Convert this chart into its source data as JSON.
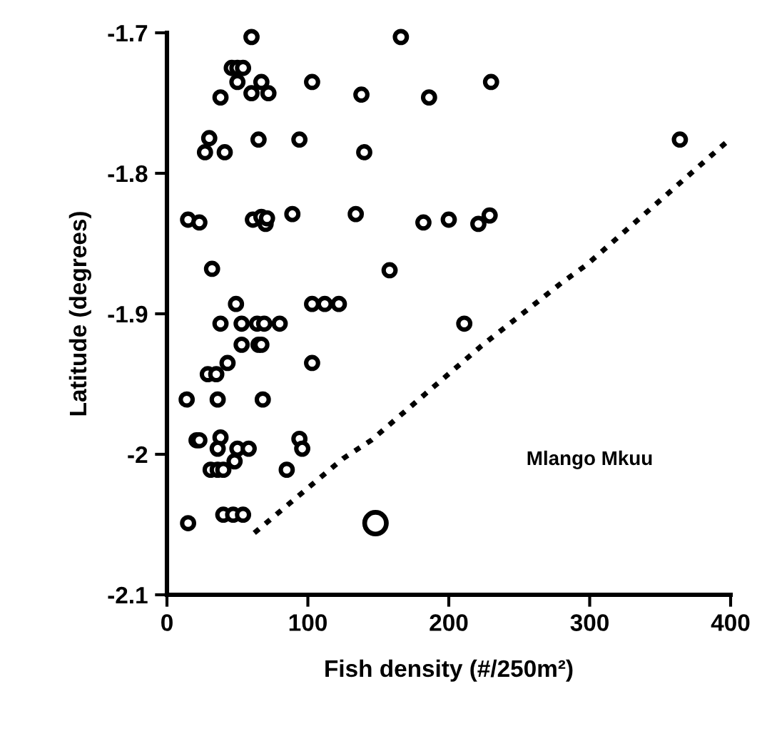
{
  "chart_data": {
    "type": "scatter",
    "xlabel": "Fish density (#/250m²)",
    "ylabel": "Latitude (degrees)",
    "xlim": [
      0,
      400
    ],
    "xticks": [
      0,
      100,
      200,
      300,
      400
    ],
    "ylim": [
      -2.1,
      -1.7
    ],
    "yticks": [
      -1.7,
      -1.8,
      -1.9,
      -2,
      -2.1
    ],
    "grid": false,
    "legend": false,
    "marker": "circle",
    "annotations": [
      "Mlango Mkuu"
    ],
    "series": [
      {
        "color": "#000000",
        "x": [
          60,
          46,
          50,
          54,
          50,
          67,
          103,
          38,
          60,
          72,
          30,
          27,
          41,
          65,
          94,
          15,
          23,
          61,
          67,
          70,
          71,
          89,
          32,
          49,
          103,
          112,
          122,
          38,
          53,
          64,
          69,
          80,
          53,
          65,
          67,
          43,
          29,
          35,
          103,
          14,
          36,
          68,
          21,
          23,
          38,
          36,
          50,
          58,
          48,
          94,
          96,
          31,
          36,
          40,
          85,
          40,
          47,
          54,
          15,
          166,
          138,
          186,
          230,
          140,
          364,
          134,
          182,
          200,
          221,
          229,
          158,
          211
        ],
        "values": [
          -1.703,
          -1.725,
          -1.725,
          -1.725,
          -1.735,
          -1.735,
          -1.735,
          -1.746,
          -1.743,
          -1.743,
          -1.775,
          -1.785,
          -1.785,
          -1.776,
          -1.776,
          -1.833,
          -1.835,
          -1.833,
          -1.831,
          -1.836,
          -1.832,
          -1.829,
          -1.868,
          -1.893,
          -1.893,
          -1.893,
          -1.893,
          -1.907,
          -1.907,
          -1.907,
          -1.907,
          -1.907,
          -1.922,
          -1.922,
          -1.922,
          -1.935,
          -1.943,
          -1.943,
          -1.935,
          -1.961,
          -1.961,
          -1.961,
          -1.99,
          -1.99,
          -1.988,
          -1.996,
          -1.996,
          -1.996,
          -2.005,
          -1.989,
          -1.996,
          -2.011,
          -2.011,
          -2.011,
          -2.011,
          -2.043,
          -2.043,
          -2.043,
          -2.049,
          -1.703,
          -1.744,
          -1.746,
          -1.735,
          -1.785,
          -1.776,
          -1.829,
          -1.835,
          -1.833,
          -1.836,
          -1.83,
          -1.869,
          -1.907
        ]
      },
      {
        "color": "#000000",
        "x": [
          148
        ],
        "values": [
          -2.049
        ]
      },
      {
        "type": "line",
        "line_style": "dotted",
        "marker": "none",
        "color": "#000000",
        "x": [
          62,
          125,
          145,
          223,
          280,
          298,
          398
        ],
        "values": [
          -2.056,
          -2.003,
          -1.99,
          -1.923,
          -1.878,
          -1.865,
          -1.777
        ]
      }
    ]
  }
}
